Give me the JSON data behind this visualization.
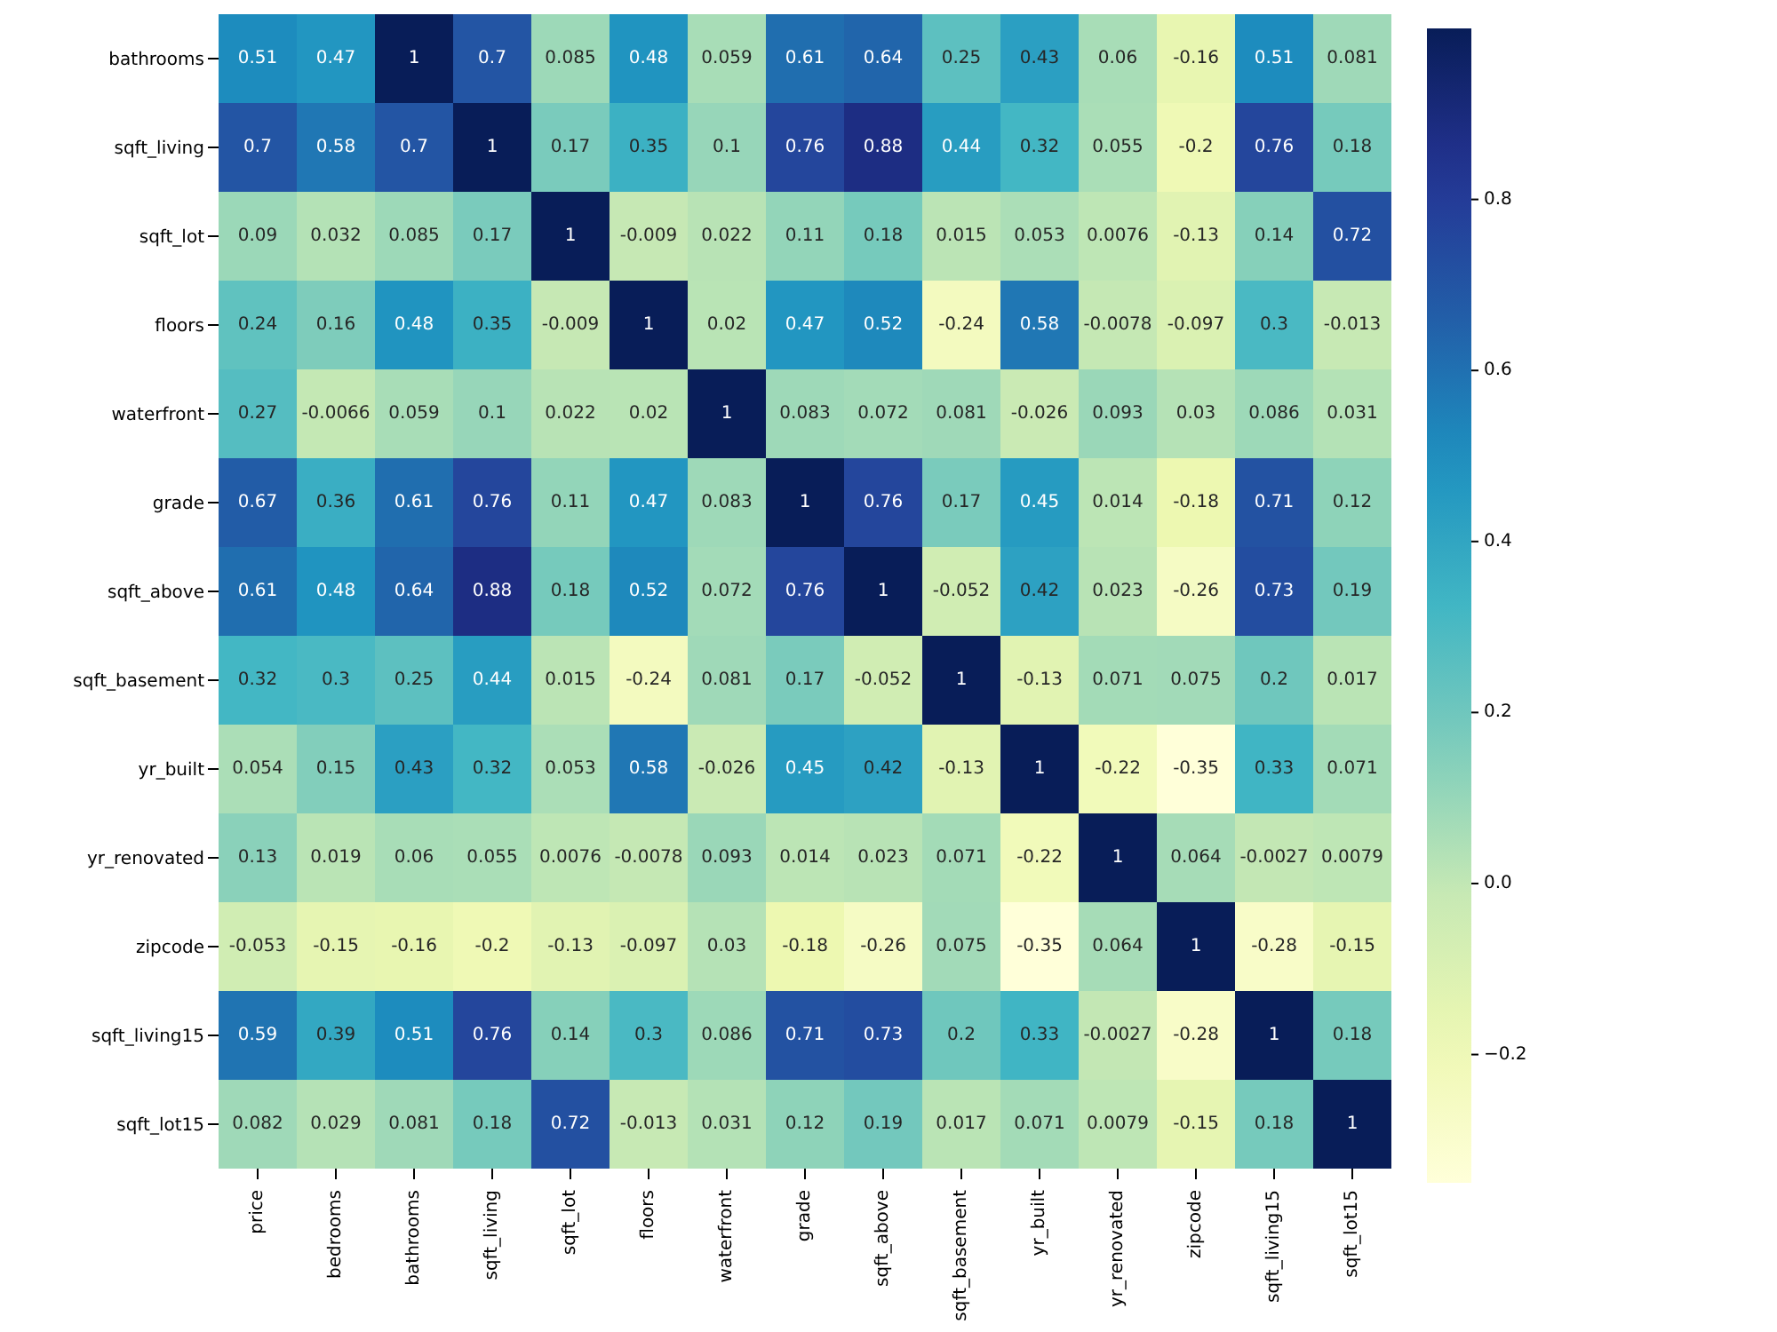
{
  "chart_data": {
    "type": "heatmap",
    "categories": [
      "price",
      "bedrooms",
      "bathrooms",
      "sqft_living",
      "sqft_lot",
      "floors",
      "waterfront",
      "grade",
      "sqft_above",
      "sqft_basement",
      "yr_built",
      "yr_renovated",
      "zipcode",
      "sqft_living15",
      "sqft_lot15"
    ],
    "y_categories": [
      "bathrooms",
      "sqft_living",
      "sqft_lot",
      "floors",
      "waterfront",
      "grade",
      "sqft_above",
      "sqft_basement",
      "yr_built",
      "yr_renovated",
      "zipcode",
      "sqft_living15",
      "sqft_lot15"
    ],
    "cells": [
      [
        0.51,
        0.47,
        1,
        0.7,
        0.085,
        0.48,
        0.059,
        0.61,
        0.64,
        0.25,
        0.43,
        0.06,
        -0.16,
        0.51,
        0.081
      ],
      [
        0.7,
        0.58,
        0.7,
        1,
        0.17,
        0.35,
        0.1,
        0.76,
        0.88,
        0.44,
        0.32,
        0.055,
        -0.2,
        0.76,
        0.18
      ],
      [
        0.09,
        0.032,
        0.085,
        0.17,
        1,
        -0.009,
        0.022,
        0.11,
        0.18,
        0.015,
        0.053,
        0.0076,
        -0.13,
        0.14,
        0.72
      ],
      [
        0.24,
        0.16,
        0.48,
        0.35,
        -0.009,
        1,
        0.02,
        0.47,
        0.52,
        -0.24,
        0.58,
        -0.0078,
        -0.097,
        0.3,
        -0.013
      ],
      [
        0.27,
        -0.0066,
        0.059,
        0.1,
        0.022,
        0.02,
        1,
        0.083,
        0.072,
        0.081,
        -0.026,
        0.093,
        0.03,
        0.086,
        0.031
      ],
      [
        0.67,
        0.36,
        0.61,
        0.76,
        0.11,
        0.47,
        0.083,
        1,
        0.76,
        0.17,
        0.45,
        0.014,
        -0.18,
        0.71,
        0.12
      ],
      [
        0.61,
        0.48,
        0.64,
        0.88,
        0.18,
        0.52,
        0.072,
        0.76,
        1,
        -0.052,
        0.42,
        0.023,
        -0.26,
        0.73,
        0.19
      ],
      [
        0.32,
        0.3,
        0.25,
        0.44,
        0.015,
        -0.24,
        0.081,
        0.17,
        -0.052,
        1,
        -0.13,
        0.071,
        0.075,
        0.2,
        0.017
      ],
      [
        0.054,
        0.15,
        0.43,
        0.32,
        0.053,
        0.58,
        -0.026,
        0.45,
        0.42,
        -0.13,
        1,
        -0.22,
        -0.35,
        0.33,
        0.071
      ],
      [
        0.13,
        0.019,
        0.06,
        0.055,
        0.0076,
        -0.0078,
        0.093,
        0.014,
        0.023,
        0.071,
        -0.22,
        1,
        0.064,
        -0.0027,
        0.0079
      ],
      [
        -0.053,
        -0.15,
        -0.16,
        -0.2,
        -0.13,
        -0.097,
        0.03,
        -0.18,
        -0.26,
        0.075,
        -0.35,
        0.064,
        1,
        -0.28,
        -0.15
      ],
      [
        0.59,
        0.39,
        0.51,
        0.76,
        0.14,
        0.3,
        0.086,
        0.71,
        0.73,
        0.2,
        0.33,
        -0.0027,
        -0.28,
        1,
        0.18
      ],
      [
        0.082,
        0.029,
        0.081,
        0.18,
        0.72,
        -0.013,
        0.031,
        0.12,
        0.19,
        0.017,
        0.071,
        0.0079,
        -0.15,
        0.18,
        1
      ]
    ],
    "data_labels": true,
    "clim": [
      -0.35,
      1
    ],
    "cticks": [
      {
        "value": -0.2,
        "label": "−0.2"
      },
      {
        "value": 0,
        "label": "0.0"
      },
      {
        "value": 0.2,
        "label": "0.2"
      },
      {
        "value": 0.4,
        "label": "0.4"
      },
      {
        "value": 0.6,
        "label": "0.6"
      },
      {
        "value": 0.8,
        "label": "0.8"
      }
    ]
  }
}
